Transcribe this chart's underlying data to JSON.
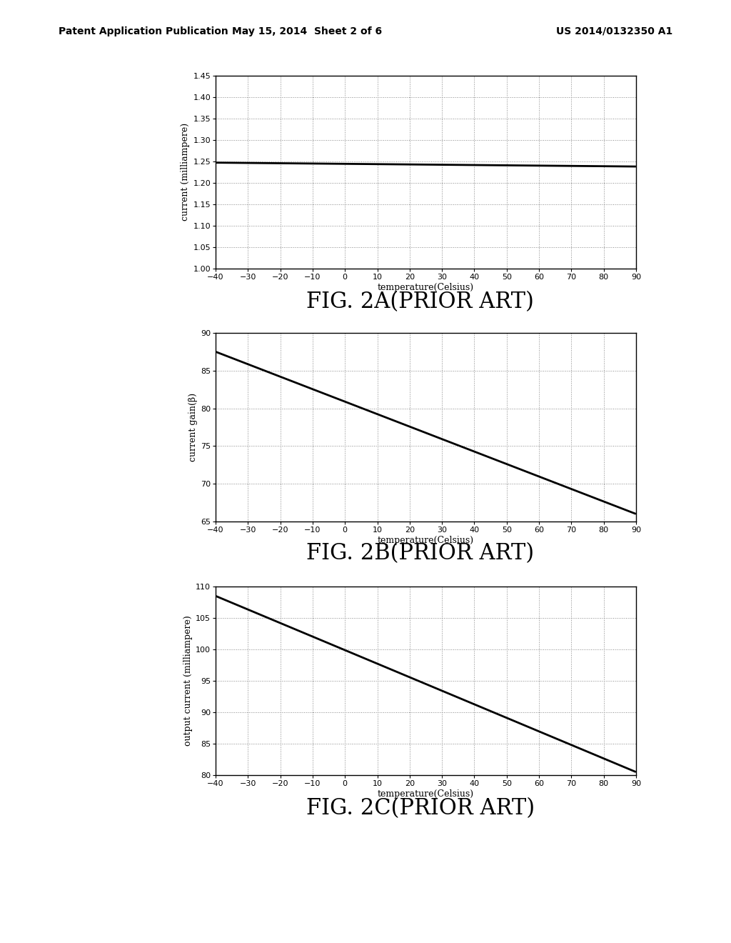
{
  "background_color": "#ffffff",
  "header_line1": "Patent Application Publication",
  "header_line2": "May 15, 2014  Sheet 2 of 6",
  "header_line3": "US 2014/0132350 A1",
  "charts": [
    {
      "title": "FIG. 2A(PRIOR ART)",
      "ylabel": "current (milliampere)",
      "xlabel": "temperature(Celsius)",
      "xlim": [
        -40,
        90
      ],
      "ylim": [
        1.0,
        1.45
      ],
      "yticks": [
        1.0,
        1.05,
        1.1,
        1.15,
        1.2,
        1.25,
        1.3,
        1.35,
        1.4,
        1.45
      ],
      "xticks": [
        -40,
        -30,
        -20,
        -10,
        0,
        10,
        20,
        30,
        40,
        50,
        60,
        70,
        80,
        90
      ],
      "line_x": [
        -40,
        90
      ],
      "line_y": [
        1.247,
        1.238
      ],
      "line_color": "#000000",
      "line_width": 2.0
    },
    {
      "title": "FIG. 2B(PRIOR ART)",
      "ylabel": "current gain(β)",
      "xlabel": "temperature(Celsius)",
      "xlim": [
        -40,
        90
      ],
      "ylim": [
        65,
        90
      ],
      "yticks": [
        65,
        70,
        75,
        80,
        85,
        90
      ],
      "xticks": [
        -40,
        -30,
        -20,
        -10,
        0,
        10,
        20,
        30,
        40,
        50,
        60,
        70,
        80,
        90
      ],
      "line_x": [
        -40,
        90
      ],
      "line_y": [
        87.5,
        66.0
      ],
      "line_color": "#000000",
      "line_width": 2.0
    },
    {
      "title": "FIG. 2C(PRIOR ART)",
      "ylabel": "output current (milliampere)",
      "xlabel": "temperature(Celsius)",
      "xlim": [
        -40,
        90
      ],
      "ylim": [
        80,
        110
      ],
      "yticks": [
        80,
        85,
        90,
        95,
        100,
        105,
        110
      ],
      "xticks": [
        -40,
        -30,
        -20,
        -10,
        0,
        10,
        20,
        30,
        40,
        50,
        60,
        70,
        80,
        90
      ],
      "line_x": [
        -40,
        90
      ],
      "line_y": [
        108.5,
        80.5
      ],
      "line_color": "#000000",
      "line_width": 2.0
    }
  ],
  "title_fontsize": 22,
  "axis_label_fontsize": 9,
  "tick_fontsize": 8,
  "header_fontsize": 10,
  "grid_color": "#888888",
  "grid_linestyle": ":",
  "grid_linewidth": 0.7
}
